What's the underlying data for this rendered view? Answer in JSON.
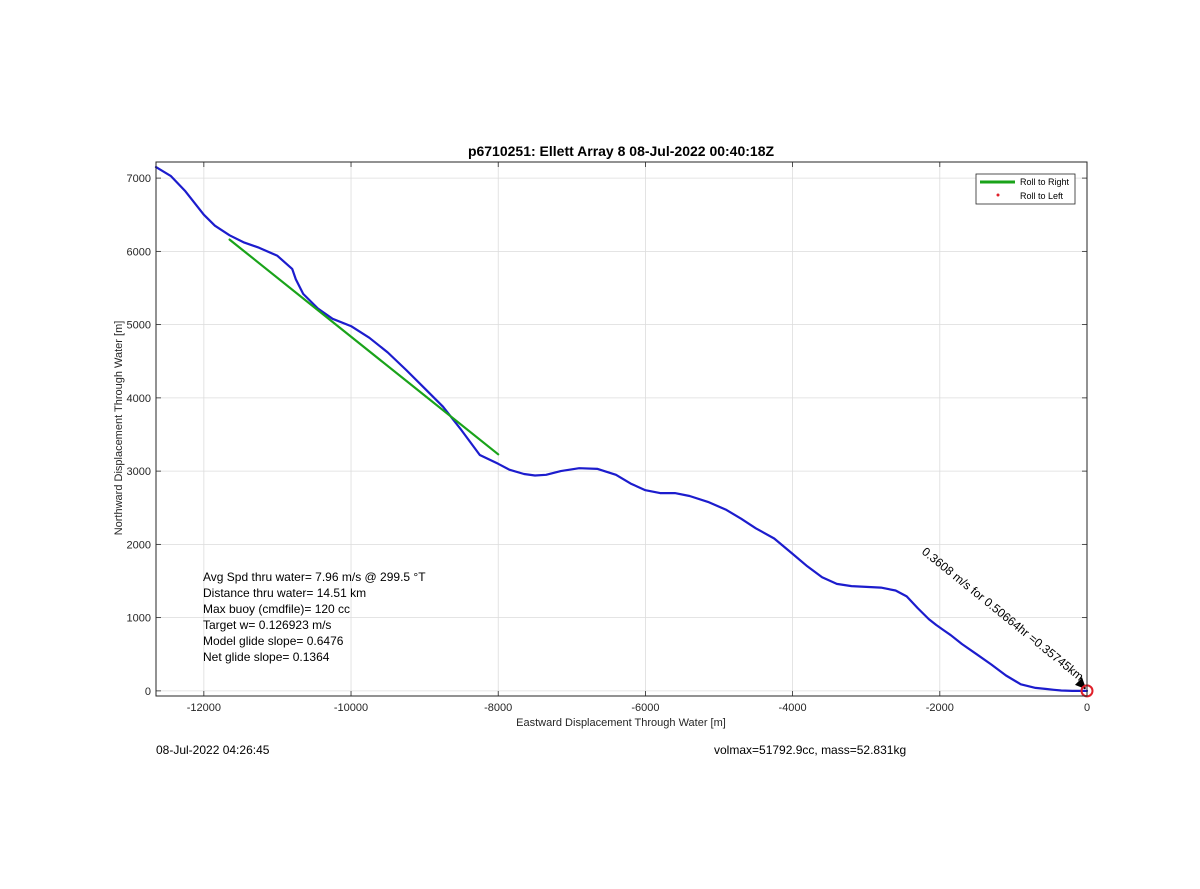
{
  "chart_data": {
    "type": "line",
    "title": "p6710251: Ellett Array 8 08-Jul-2022 00:40:18Z",
    "xlabel": "Eastward Displacement Through Water [m]",
    "ylabel": "Northward Displacement Through Water [m]",
    "xlim": [
      -12650,
      0
    ],
    "ylim": [
      -70,
      7220
    ],
    "xticks": [
      -12000,
      -10000,
      -8000,
      -6000,
      -4000,
      -2000,
      0
    ],
    "yticks": [
      0,
      1000,
      2000,
      3000,
      4000,
      5000,
      6000,
      7000
    ],
    "xtick_labels": [
      "-12000",
      "-10000",
      "-8000",
      "-6000",
      "-4000",
      "-2000",
      "0"
    ],
    "ytick_labels": [
      "0",
      "1000",
      "2000",
      "3000",
      "4000",
      "5000",
      "6000",
      "7000"
    ],
    "grid": true,
    "legend_placement": "top-right",
    "legend": [
      {
        "label": "Roll to Right",
        "style": "line",
        "color": "#1aa31a"
      },
      {
        "label": "Roll to Left",
        "style": "dot",
        "color": "#e0202a"
      }
    ],
    "series": [
      {
        "color": "#1c1ccd",
        "x": [
          -12650,
          -12450,
          -12250,
          -12000,
          -11850,
          -11650,
          -11450,
          -11250,
          -11000,
          -10800,
          -10750,
          -10650,
          -10450,
          -10250,
          -10000,
          -9750,
          -9500,
          -9250,
          -9000,
          -8750,
          -8500,
          -8250,
          -8000,
          -7850,
          -7650,
          -7500,
          -7350,
          -7150,
          -6900,
          -6650,
          -6400,
          -6200,
          -6000,
          -5800,
          -5600,
          -5400,
          -5150,
          -4900,
          -4700,
          -4500,
          -4250,
          -4000,
          -3800,
          -3600,
          -3400,
          -3200,
          -3000,
          -2800,
          -2600,
          -2450,
          -2300,
          -2150,
          -2050,
          -1950,
          -1850,
          -1700,
          -1500,
          -1300,
          -1100,
          -900,
          -700,
          -550,
          -450,
          -350,
          -200,
          -80,
          0
        ],
        "y": [
          7150,
          7030,
          6820,
          6500,
          6350,
          6220,
          6120,
          6050,
          5940,
          5760,
          5620,
          5420,
          5220,
          5080,
          4980,
          4820,
          4620,
          4380,
          4130,
          3880,
          3560,
          3220,
          3100,
          3020,
          2960,
          2940,
          2950,
          3000,
          3040,
          3030,
          2950,
          2830,
          2740,
          2700,
          2700,
          2660,
          2580,
          2470,
          2350,
          2220,
          2080,
          1870,
          1700,
          1550,
          1460,
          1430,
          1420,
          1410,
          1370,
          1290,
          1130,
          980,
          900,
          830,
          760,
          640,
          500,
          360,
          210,
          90,
          40,
          25,
          15,
          5,
          0,
          0,
          0
        ]
      },
      {
        "name": "Roll to Right",
        "color": "#1aa31a",
        "x": [
          -11650,
          -8000
        ],
        "y": [
          6160,
          3230
        ]
      }
    ],
    "annotations": [
      "Avg Spd thru water=  7.96 m/s @ 299.5 °T",
      "Distance thru water= 14.51 km",
      "Max buoy (cmdfile)= 120 cc",
      "Target w= 0.126923 m/s",
      "Model glide slope= 0.6476",
      "Net glide slope= 0.1364"
    ],
    "rotated_label": "0.3608 m/s for 0.50664hr =0.35745km",
    "marker": {
      "x": 0,
      "y": 0,
      "color": "#e0202a"
    }
  },
  "footer": {
    "left": "08-Jul-2022 04:26:45",
    "right": "volmax=51792.9cc, mass=52.831kg"
  }
}
